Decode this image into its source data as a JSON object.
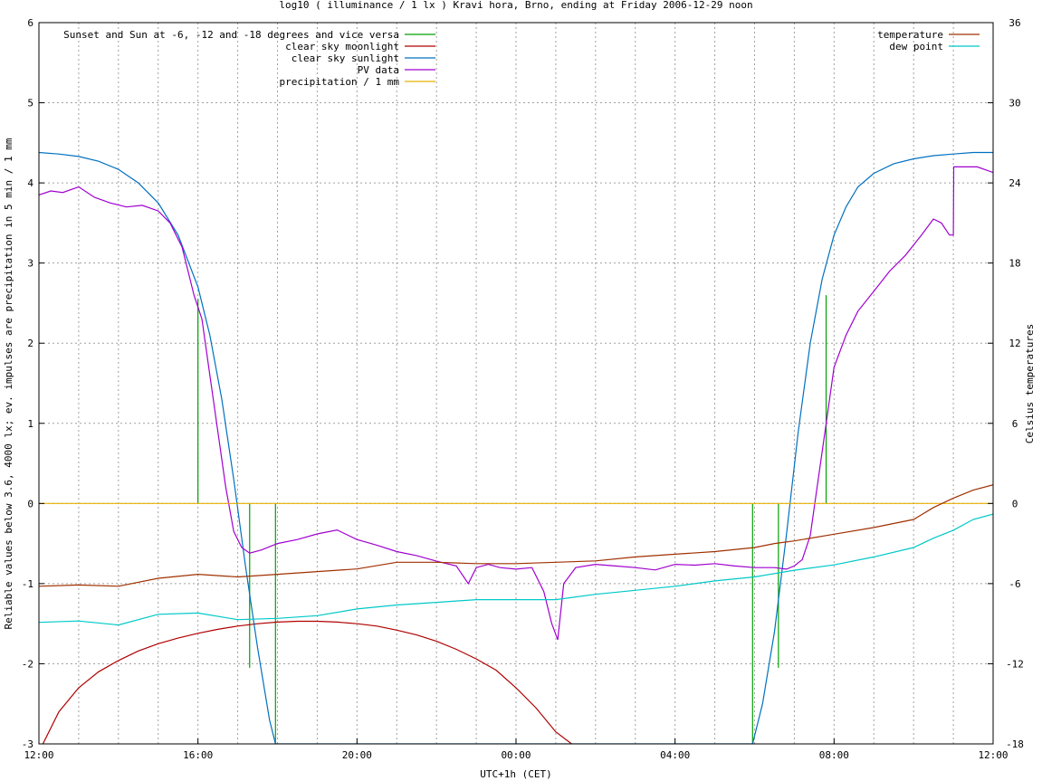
{
  "chart_data": {
    "type": "line",
    "title": "log10 ( illuminance / 1 lx ) Kravi hora, Brno, ending at Friday 2006-12-29 noon",
    "xlabel": "UTC+1h (CET)",
    "ylabel": "Reliable values below 3.6, 4000 lx; ev. impulses are precipitation in 5 min / 1 mm",
    "y2label": "Celsius temperatures",
    "x_unit": "hours since 12:00 (Thursday 2006-12-28)",
    "xlim": [
      0,
      24
    ],
    "ylim": [
      -3,
      6
    ],
    "y2lim": [
      -18,
      36
    ],
    "x_ticks": [
      {
        "x": 0,
        "label": "12:00"
      },
      {
        "x": 4,
        "label": "16:00"
      },
      {
        "x": 8,
        "label": "20:00"
      },
      {
        "x": 12,
        "label": "00:00"
      },
      {
        "x": 16,
        "label": "04:00"
      },
      {
        "x": 20,
        "label": "08:00"
      },
      {
        "x": 24,
        "label": "12:00"
      }
    ],
    "y_ticks": [
      "6",
      "5",
      "4",
      "3",
      "2",
      "1",
      "0",
      "-1",
      "-2",
      "-3"
    ],
    "y2_ticks": [
      "36",
      "30",
      "24",
      "18",
      "12",
      "6",
      "0",
      "-6",
      "-12",
      "-18"
    ],
    "grid": true,
    "legend_left": [
      {
        "name": "Sunset and Sun at -6, -12 and -18 degrees and vice versa",
        "color": "#00a000"
      },
      {
        "name": "clear sky moonlight",
        "color": "#b00000"
      },
      {
        "name": "clear sky sunlight",
        "color": "#0070c0"
      },
      {
        "name": "PV data",
        "color": "#a000d0"
      },
      {
        "name": "precipitation / 1 mm",
        "color": "#e8b000"
      }
    ],
    "legend_right": [
      {
        "name": "temperature",
        "color": "#a03000"
      },
      {
        "name": "dew point",
        "color": "#00c8c8"
      }
    ],
    "series": [
      {
        "name": "Sunset and Sun at -6, -12 and -18 degrees and vice versa",
        "type": "impulse",
        "color": "#00a000",
        "x": [
          4.0,
          5.3,
          5.95,
          17.95,
          18.6,
          19.8
        ],
        "y": [
          2.55,
          -2.05,
          -3.0,
          -3.0,
          -2.05,
          2.6
        ]
      },
      {
        "name": "clear sky moonlight",
        "color": "#b00000",
        "axis": "y1",
        "x": [
          0.1,
          0.5,
          1.0,
          1.5,
          2.0,
          2.5,
          3.0,
          3.5,
          4.0,
          4.5,
          5.0,
          5.5,
          6.0,
          6.5,
          7.0,
          7.5,
          8.0,
          8.5,
          9.0,
          9.5,
          10.0,
          10.5,
          11.0,
          11.5,
          12.0,
          12.5,
          13.0,
          13.4
        ],
        "y": [
          -3.0,
          -2.6,
          -2.3,
          -2.1,
          -1.96,
          -1.84,
          -1.75,
          -1.68,
          -1.62,
          -1.57,
          -1.53,
          -1.5,
          -1.48,
          -1.47,
          -1.47,
          -1.48,
          -1.5,
          -1.53,
          -1.58,
          -1.64,
          -1.72,
          -1.82,
          -1.94,
          -2.08,
          -2.3,
          -2.55,
          -2.85,
          -3.0
        ]
      },
      {
        "name": "clear sky sunlight",
        "color": "#0070c0",
        "axis": "y1",
        "x": [
          0,
          0.5,
          1.0,
          1.5,
          2.0,
          2.5,
          3.0,
          3.5,
          4.0,
          4.3,
          4.6,
          4.9,
          5.2,
          5.5,
          5.8,
          5.95,
          17.95,
          18.2,
          18.5,
          18.8,
          19.1,
          19.4,
          19.7,
          20.0,
          20.3,
          20.6,
          21.0,
          21.5,
          22.0,
          22.5,
          23.0,
          23.5,
          24.0
        ],
        "y": [
          4.38,
          4.36,
          4.33,
          4.27,
          4.17,
          4.0,
          3.75,
          3.35,
          2.7,
          2.1,
          1.3,
          0.3,
          -0.8,
          -1.8,
          -2.7,
          -3.0,
          -3.0,
          -2.5,
          -1.6,
          -0.4,
          0.9,
          2.0,
          2.8,
          3.35,
          3.7,
          3.95,
          4.12,
          4.24,
          4.3,
          4.34,
          4.36,
          4.38,
          4.38
        ]
      },
      {
        "name": "PV data",
        "color": "#a000d0",
        "axis": "y1",
        "x": [
          0,
          0.3,
          0.6,
          1.0,
          1.4,
          1.8,
          2.2,
          2.6,
          3.0,
          3.3,
          3.6,
          3.9,
          4.1,
          4.3,
          4.5,
          4.7,
          4.9,
          5.1,
          5.3,
          5.6,
          6.0,
          6.5,
          7.0,
          7.5,
          8.0,
          8.5,
          9.0,
          9.5,
          10.0,
          10.5,
          10.8,
          11.0,
          11.3,
          11.6,
          12.0,
          12.4,
          12.7,
          12.9,
          13.05,
          13.2,
          13.5,
          14.0,
          14.5,
          15.0,
          15.5,
          16.0,
          16.5,
          17.0,
          17.5,
          18.0,
          18.5,
          18.8,
          19.0,
          19.2,
          19.4,
          19.6,
          19.8,
          20.0,
          20.3,
          20.6,
          21.0,
          21.4,
          21.8,
          22.2,
          22.5,
          22.7,
          22.9,
          23.0,
          23.01,
          23.3,
          23.6,
          24.0
        ],
        "y": [
          3.85,
          3.9,
          3.88,
          3.95,
          3.82,
          3.75,
          3.7,
          3.72,
          3.65,
          3.5,
          3.2,
          2.6,
          2.3,
          1.6,
          0.9,
          0.2,
          -0.35,
          -0.55,
          -0.62,
          -0.58,
          -0.5,
          -0.45,
          -0.38,
          -0.33,
          -0.45,
          -0.52,
          -0.6,
          -0.65,
          -0.72,
          -0.78,
          -1.0,
          -0.8,
          -0.76,
          -0.8,
          -0.82,
          -0.8,
          -1.1,
          -1.5,
          -1.7,
          -1.0,
          -0.8,
          -0.76,
          -0.78,
          -0.8,
          -0.83,
          -0.76,
          -0.77,
          -0.75,
          -0.78,
          -0.8,
          -0.8,
          -0.82,
          -0.78,
          -0.7,
          -0.4,
          0.3,
          1.0,
          1.7,
          2.1,
          2.4,
          2.65,
          2.9,
          3.1,
          3.35,
          3.55,
          3.5,
          3.35,
          3.35,
          4.2,
          4.2,
          4.2,
          4.13
        ]
      },
      {
        "name": "precipitation / 1 mm",
        "color": "#e8b000",
        "axis": "y1",
        "x": [
          0,
          24
        ],
        "y": [
          0,
          0
        ]
      },
      {
        "name": "temperature",
        "color": "#a03000",
        "axis": "y2",
        "x": [
          0,
          1,
          2,
          3,
          4,
          5,
          6,
          7,
          8,
          9,
          10,
          11,
          12,
          13,
          14,
          15,
          16,
          17,
          18,
          18.5,
          19,
          20,
          21,
          22,
          22.5,
          23,
          23.5,
          24
        ],
        "y": [
          -6.2,
          -6.1,
          -6.2,
          -5.6,
          -5.3,
          -5.5,
          -5.3,
          -5.1,
          -4.9,
          -4.4,
          -4.4,
          -4.5,
          -4.5,
          -4.4,
          -4.3,
          -4.0,
          -3.8,
          -3.6,
          -3.3,
          -3.0,
          -2.8,
          -2.3,
          -1.8,
          -1.2,
          -0.3,
          0.4,
          1.0,
          1.4
        ]
      },
      {
        "name": "dew point",
        "color": "#00c8c8",
        "axis": "y2",
        "x": [
          0,
          1,
          2,
          3,
          4,
          5,
          6,
          7,
          8,
          9,
          10,
          11,
          12,
          13,
          14,
          15,
          16,
          17,
          18,
          19,
          20,
          21,
          22,
          22.5,
          23,
          23.5,
          24
        ],
        "y": [
          -8.9,
          -8.8,
          -9.1,
          -8.3,
          -8.2,
          -8.7,
          -8.6,
          -8.4,
          -7.9,
          -7.6,
          -7.4,
          -7.2,
          -7.2,
          -7.2,
          -6.8,
          -6.5,
          -6.2,
          -5.8,
          -5.5,
          -5.0,
          -4.6,
          -4.0,
          -3.3,
          -2.6,
          -2.0,
          -1.2,
          -0.8
        ]
      }
    ]
  }
}
